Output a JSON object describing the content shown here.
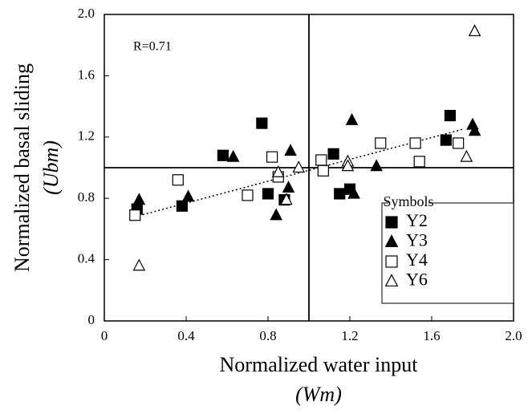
{
  "chart_data": {
    "type": "scatter",
    "annotation": "R=0.71",
    "x_label": "Normalized water input",
    "x_label_symbol": "(Wm)",
    "y_label": "Normalized basal sliding",
    "y_label_symbol": "(Ubm)",
    "legend_title": "Symbols",
    "legend_position": "lower right",
    "xlim": [
      0,
      2
    ],
    "ylim": [
      0,
      2
    ],
    "xticks": [
      0,
      0.4,
      0.8,
      1.2,
      1.6,
      {
        "value": 2,
        "label": "2.0"
      }
    ],
    "yticks": [
      0,
      0.4,
      0.8,
      1.2,
      1.6,
      {
        "value": 2,
        "label": "2.0"
      }
    ],
    "reference_lines": {
      "x": 1,
      "y": 1
    },
    "trend_line": {
      "x": [
        0.15,
        1.75
      ],
      "y": [
        0.68,
        1.25
      ]
    },
    "series": [
      {
        "name": "Y2",
        "marker": "square-filled",
        "color": "#000000",
        "x": [
          0.16,
          0.38,
          0.58,
          0.77,
          0.8,
          0.88,
          1.12,
          1.15,
          1.2,
          1.67,
          1.69
        ],
        "values": [
          0.73,
          0.75,
          1.08,
          1.29,
          0.83,
          0.79,
          1.09,
          0.83,
          0.86,
          1.18,
          1.34
        ]
      },
      {
        "name": "Y3",
        "marker": "triangle-filled",
        "color": "#000000",
        "x": [
          0.17,
          0.41,
          0.63,
          0.84,
          0.9,
          0.91,
          1.21,
          1.22,
          1.33,
          1.8,
          1.81
        ],
        "values": [
          0.79,
          0.81,
          1.07,
          0.69,
          0.87,
          1.11,
          1.31,
          0.83,
          1.01,
          1.28,
          1.24
        ]
      },
      {
        "name": "Y4",
        "marker": "square-open",
        "color": "#000000",
        "x": [
          0.15,
          0.36,
          0.7,
          0.82,
          0.85,
          1.06,
          1.07,
          1.35,
          1.52,
          1.54,
          1.73
        ],
        "values": [
          0.69,
          0.92,
          0.82,
          1.07,
          0.94,
          1.05,
          0.98,
          1.16,
          1.16,
          1.04,
          1.16
        ]
      },
      {
        "name": "Y6",
        "marker": "triangle-open",
        "color": "#000000",
        "x": [
          0.17,
          0.85,
          0.89,
          0.95,
          1.19,
          1.19,
          1.77,
          1.81
        ],
        "values": [
          0.36,
          0.97,
          0.79,
          1.0,
          1.04,
          1.01,
          1.07,
          1.89
        ]
      }
    ]
  }
}
